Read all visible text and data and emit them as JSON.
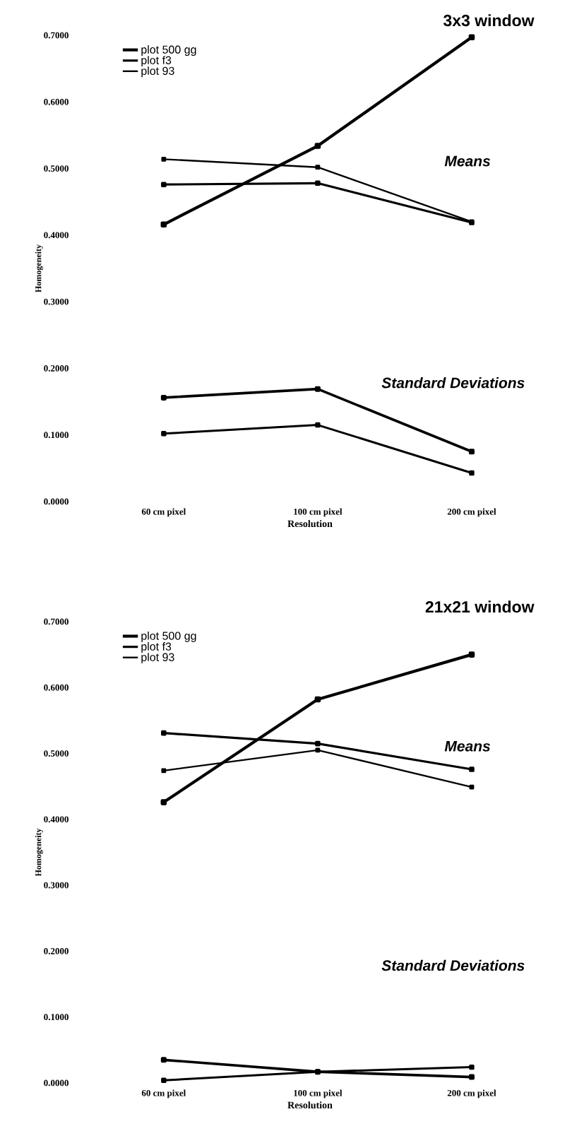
{
  "chart_data": [
    {
      "type": "line",
      "title": "3x3 window",
      "xlabel": "Resolution",
      "ylabel": "Homogeneity",
      "categories": [
        "60 cm pixel",
        "100 cm pixel",
        "200 cm pixel"
      ],
      "series": [
        {
          "name": "plot 500 gg",
          "color": "#000000",
          "values": [
            0.416,
            0.534,
            0.697
          ]
        },
        {
          "name": "plot f3",
          "color": "#000000",
          "values": [
            0.476,
            0.478,
            0.419
          ]
        },
        {
          "name": "plot 93",
          "color": "#000000",
          "values": [
            0.514,
            0.502,
            0.42
          ]
        },
        {
          "color": "#000000",
          "values": [
            0.156,
            0.169,
            0.075
          ]
        },
        {
          "color": "#000000",
          "values": [
            0.102,
            0.115,
            0.043
          ]
        }
      ],
      "ylim": [
        0,
        0.7
      ],
      "yticks": [
        {
          "value": 0,
          "label": "0.0000"
        },
        {
          "value": 0.1,
          "label": "0.1000"
        },
        {
          "value": 0.2,
          "label": "0.2000"
        },
        {
          "value": 0.3,
          "label": "0.3000"
        },
        {
          "value": 0.4,
          "label": "0.4000"
        },
        {
          "value": 0.5,
          "label": "0.5000"
        },
        {
          "value": 0.6,
          "label": "0.6000"
        },
        {
          "value": 0.7,
          "label": "0.7000"
        }
      ],
      "annotations": [
        "Means",
        "Standard Deviations"
      ],
      "legend": "top left",
      "marker": "square",
      "grid": false
    },
    {
      "type": "line",
      "title": "21x21 window",
      "xlabel": "Resolution",
      "ylabel": "Homogeneity",
      "categories": [
        "60 cm pixel",
        "100 cm pixel",
        "200 cm pixel"
      ],
      "series": [
        {
          "name": "plot 500 gg",
          "color": "#000000",
          "values": [
            0.426,
            0.582,
            0.65
          ]
        },
        {
          "name": "plot f3",
          "color": "#000000",
          "values": [
            0.531,
            0.515,
            0.476
          ]
        },
        {
          "name": "plot 93",
          "color": "#000000",
          "values": [
            0.474,
            0.505,
            0.449
          ]
        },
        {
          "color": "#000000",
          "values": [
            0.035,
            0.017,
            0.009
          ]
        },
        {
          "color": "#000000",
          "values": [
            0.004,
            0.017,
            0.024
          ]
        }
      ],
      "ylim": [
        0,
        0.7
      ],
      "yticks": [
        {
          "value": 0,
          "label": "0.0000"
        },
        {
          "value": 0.1,
          "label": "0.1000"
        },
        {
          "value": 0.2,
          "label": "0.2000"
        },
        {
          "value": 0.3,
          "label": "0.3000"
        },
        {
          "value": 0.4,
          "label": "0.4000"
        },
        {
          "value": 0.5,
          "label": "0.5000"
        },
        {
          "value": 0.6,
          "label": "0.6000"
        },
        {
          "value": 0.7,
          "label": "0.7000"
        }
      ],
      "annotations": [
        "Means",
        "Standard Deviations"
      ],
      "legend": "top left",
      "marker": "square",
      "grid": false
    }
  ]
}
